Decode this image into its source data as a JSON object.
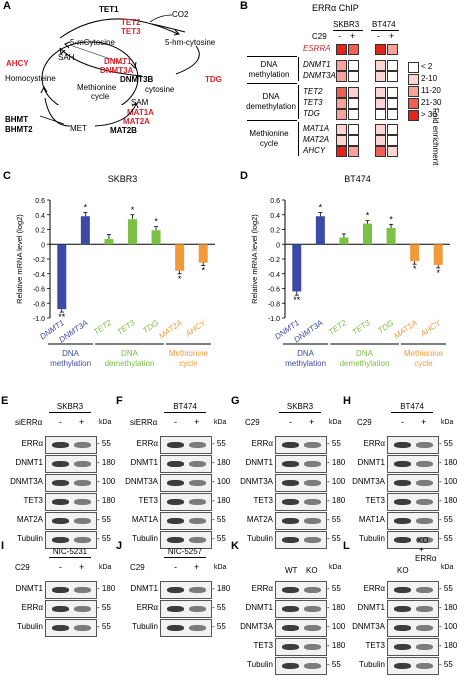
{
  "panel_labels": [
    "A",
    "B",
    "C",
    "D",
    "E",
    "F",
    "G",
    "H",
    "I",
    "J",
    "K",
    "L"
  ],
  "panelA": {
    "tet1": "TET1",
    "tet2": "TET2",
    "tet3": "TET3",
    "co2": "CO2",
    "mc": "5-mCytosine",
    "hmc": "5-hm-cytosine",
    "sah": "SAH",
    "ahcy": "AHCY",
    "homocys": "Homocysteine",
    "dnmt1": "DNMT1",
    "dnmt3a": "DNMT3A",
    "dnmt3b": "DNMT3B",
    "cytosine": "cytosine",
    "tdg": "TDG",
    "sam": "SAM",
    "cycle1": "Methionine",
    "cycle2": "cycle",
    "bhmt": "BHMT",
    "bhmt2": "BHMT2",
    "met": "MET",
    "mat1a": "MAT1A",
    "mat2a": "MAT2A",
    "mat2b": "MAT2B"
  },
  "panelB": {
    "title": "ERRα ChIP",
    "cell1": "SKBR3",
    "cell2": "BT474",
    "c29": "C29",
    "minus": "-",
    "plus": "+",
    "groups": [
      {
        "name": "",
        "genes": [
          "ESRRA"
        ]
      },
      {
        "name": "DNA methylation",
        "genes": [
          "DNMT1",
          "DNMT3A"
        ]
      },
      {
        "name": "DNA demethylation",
        "genes": [
          "TET2",
          "TET3",
          "TDG"
        ]
      },
      {
        "name": "Methionine cycle",
        "genes": [
          "MAT1A",
          "MAT2A",
          "AHCY"
        ]
      }
    ],
    "group_labels": [
      "DNA",
      "methylation",
      "DNA",
      "demethylation",
      "Methionine",
      "cycle"
    ],
    "legend_title": "Fold enrichment",
    "legend": [
      {
        "label": "< 2",
        "color": "#ffffff"
      },
      {
        "label": "2-10",
        "color": "#fcd4d1"
      },
      {
        "label": "11-20",
        "color": "#f7a39c"
      },
      {
        "label": "21-30",
        "color": "#ee5f54"
      },
      {
        "label": "> 30",
        "color": "#e3241a"
      }
    ],
    "enrichment": {
      "SKBR3": [
        [
          5,
          4
        ],
        [
          3,
          1
        ],
        [
          3,
          1
        ],
        [
          4,
          2
        ],
        [
          3,
          1
        ],
        [
          3,
          1
        ],
        [
          2,
          1
        ],
        [
          2,
          1
        ],
        [
          5,
          3
        ]
      ],
      "BT474": [
        [
          5,
          3
        ],
        [
          2,
          1
        ],
        [
          2,
          1
        ],
        [
          2,
          1
        ],
        [
          2,
          1
        ],
        [
          1,
          1
        ],
        [
          2,
          1
        ],
        [
          2,
          1
        ],
        [
          4,
          2
        ]
      ]
    }
  },
  "chart_data": [
    {
      "type": "bar",
      "title": "SKBR3",
      "ylabel": "Relative mRNA level (log2)",
      "ylim": [
        -1.0,
        0.6
      ],
      "yticks": [
        "0.6",
        "0.4",
        "0.2",
        "0",
        "-0.2",
        "-0.4",
        "-0.6",
        "-0.8",
        "-1.0"
      ],
      "categories": [
        "DNMT1",
        "DNMT3A",
        "TET2",
        "TET3",
        "TDG",
        "MAT2A",
        "AHCY"
      ],
      "values": [
        -0.88,
        0.38,
        0.07,
        0.34,
        0.19,
        -0.36,
        -0.25
      ],
      "errors": [
        0.04,
        0.05,
        0.06,
        0.06,
        0.05,
        0.04,
        0.04
      ],
      "stars": [
        "**",
        "*",
        "",
        "*",
        "*",
        "*",
        "*"
      ],
      "colors": [
        "#3b4aa6",
        "#3b4aa6",
        "#7bc143",
        "#7bc143",
        "#7bc143",
        "#f29a3a",
        "#f29a3a"
      ],
      "groups": [
        {
          "label1": "DNA",
          "label2": "methylation",
          "color": "#3b4aa6"
        },
        {
          "label1": "DNA",
          "label2": "demethylation",
          "color": "#7bc143"
        },
        {
          "label1": "Methionine",
          "label2": "cycle",
          "color": "#f29a3a"
        }
      ]
    },
    {
      "type": "bar",
      "title": "BT474",
      "ylabel": "Relative mRNA level (log2)",
      "ylim": [
        -1.0,
        0.6
      ],
      "yticks": [
        "0.6",
        "0.4",
        "0.2",
        "0",
        "-0.2",
        "-0.4",
        "-0.6",
        "-0.8",
        "-1.0"
      ],
      "categories": [
        "DNMT1",
        "DNMT3A",
        "TET2",
        "TET3",
        "TDG",
        "MAT1A",
        "AHCY"
      ],
      "values": [
        -0.64,
        0.38,
        0.09,
        0.28,
        0.22,
        -0.23,
        -0.28
      ],
      "errors": [
        0.05,
        0.05,
        0.05,
        0.04,
        0.05,
        0.04,
        0.04
      ],
      "stars": [
        "**",
        "*",
        "",
        "*",
        "*",
        "*",
        "*"
      ],
      "colors": [
        "#3b4aa6",
        "#3b4aa6",
        "#7bc143",
        "#7bc143",
        "#7bc143",
        "#f29a3a",
        "#f29a3a"
      ],
      "groups": [
        {
          "label1": "DNA",
          "label2": "methylation",
          "color": "#3b4aa6"
        },
        {
          "label1": "DNA",
          "label2": "demethylation",
          "color": "#7bc143"
        },
        {
          "label1": "Methionine",
          "label2": "cycle",
          "color": "#f29a3a"
        }
      ]
    }
  ],
  "blots_row1": [
    {
      "panel": "E",
      "cell": "SKBR3",
      "treat": "siERRα",
      "rows": [
        "ERRα",
        "DNMT1",
        "DNMT3A",
        "TET3",
        "MAT2A",
        "Tubulin"
      ],
      "kda": [
        "55",
        "180",
        "100",
        "180",
        "55",
        "55"
      ]
    },
    {
      "panel": "F",
      "cell": "BT474",
      "treat": "siERRα",
      "rows": [
        "ERRα",
        "DNMT1",
        "DNMT3A",
        "TET3",
        "MAT1A",
        "Tubulin"
      ],
      "kda": [
        "55",
        "180",
        "100",
        "180",
        "55",
        "55"
      ]
    },
    {
      "panel": "G",
      "cell": "SKBR3",
      "treat": "C29",
      "rows": [
        "ERRα",
        "DNMT1",
        "DNMT3A",
        "TET3",
        "MAT2A",
        "Tubulin"
      ],
      "kda": [
        "55",
        "180",
        "100",
        "180",
        "55",
        "55"
      ]
    },
    {
      "panel": "H",
      "cell": "BT474",
      "treat": "C29",
      "rows": [
        "ERRα",
        "DNMT1",
        "DNMT3A",
        "TET3",
        "MAT1A",
        "Tubulin"
      ],
      "kda": [
        "55",
        "180",
        "100",
        "180",
        "55",
        "55"
      ]
    }
  ],
  "blots_row2": [
    {
      "panel": "I",
      "cell": "NIC-5231",
      "treat": "C29",
      "rows": [
        "DNMT1",
        "ERRα",
        "Tubulin"
      ],
      "kda": [
        "180",
        "55",
        "55"
      ]
    },
    {
      "panel": "J",
      "cell": "NIC-5257",
      "treat": "C29",
      "rows": [
        "DNMT1",
        "ERRα",
        "Tubulin"
      ],
      "kda": [
        "180",
        "55",
        "55"
      ]
    },
    {
      "panel": "K",
      "cell": "",
      "cols": [
        "WT",
        "KO"
      ],
      "rows": [
        "ERRα",
        "DNMT1",
        "DNMT3A",
        "TET3",
        "Tubulin"
      ],
      "kda": [
        "55",
        "180",
        "100",
        "180",
        "55"
      ]
    },
    {
      "panel": "L",
      "cell": "",
      "header1": "KO",
      "header2": "+",
      "header3": "ERRα",
      "cols": [
        "KO",
        ""
      ],
      "rows": [
        "ERRα",
        "DNMT1",
        "DNMT3A",
        "TET3",
        "Tubulin"
      ],
      "kda": [
        "55",
        "180",
        "100",
        "180",
        "55"
      ]
    }
  ],
  "common": {
    "minus": "-",
    "plus": "+",
    "kda": "kDa"
  }
}
